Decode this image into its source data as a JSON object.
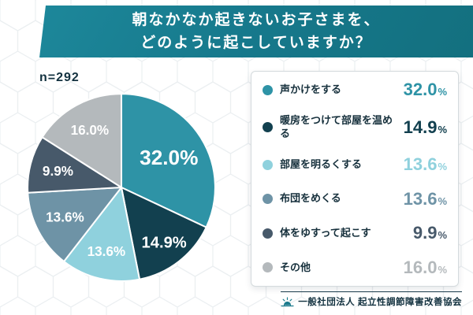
{
  "header": {
    "title_line1": "朝なかなか起きないお子さまを、",
    "title_line2": "どのように起こしていますか？"
  },
  "chart_data": {
    "type": "pie",
    "title": "朝なかなか起きないお子さまを、どのように起こしていますか？",
    "sample_size": "n=292",
    "categories": [
      "声かけをする",
      "暖房をつけて部屋を温める",
      "部屋を明るくする",
      "布団をめくる",
      "体をゆすって起こす",
      "その他"
    ],
    "values": [
      32.0,
      14.9,
      13.6,
      13.6,
      9.9,
      16.0
    ],
    "labels": [
      "32.0%",
      "14.9%",
      "13.6%",
      "13.6%",
      "9.9%",
      "16.0%"
    ],
    "unit": "%",
    "colors": [
      "#2e93a6",
      "#12404f",
      "#8fd1dd",
      "#6e93a6",
      "#47596a",
      "#b4b9bc"
    ],
    "start_angle_deg_from_top": 0,
    "direction": "clockwise",
    "legend_position": "right",
    "slice_label_color": "#ffffff"
  },
  "legend": {
    "items": [
      {
        "label": "声かけをする",
        "value": "32.0",
        "unit": "%"
      },
      {
        "label": "暖房をつけて部屋を温める",
        "value": "14.9",
        "unit": "%"
      },
      {
        "label": "部屋を明るくする",
        "value": "13.6",
        "unit": "%"
      },
      {
        "label": "布団をめくる",
        "value": "13.6",
        "unit": "%"
      },
      {
        "label": "体をゆすって起こす",
        "value": "9.9",
        "unit": "%"
      },
      {
        "label": "その他",
        "value": "16.0",
        "unit": "%"
      }
    ]
  },
  "footer": {
    "org": "一般社団法人 起立性調節障害改善協会"
  }
}
